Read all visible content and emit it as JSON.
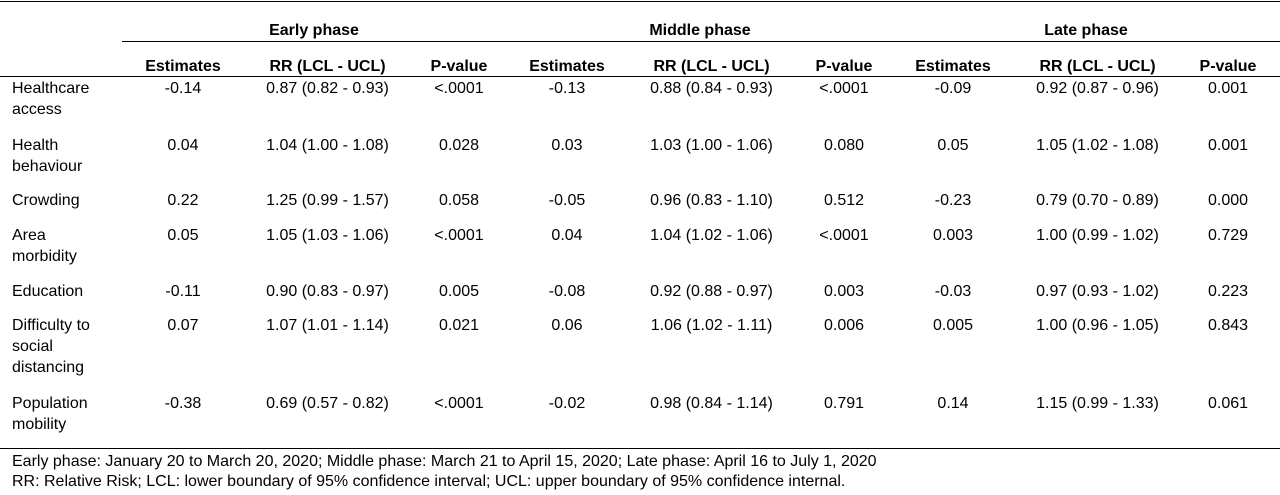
{
  "phases": [
    "Early phase",
    "Middle phase",
    "Late phase"
  ],
  "subheaders": [
    "Estimates",
    "RR (LCL - UCL)",
    "P-value",
    "Estimates",
    "RR (LCL - UCL)",
    "P-value",
    "Estimates",
    "RR (LCL - UCL)",
    "P-value"
  ],
  "rows": [
    {
      "label": [
        "Healthcare",
        "access"
      ],
      "cells": [
        "-0.14",
        "0.87 (0.82 - 0.93)",
        "<.0001",
        "-0.13",
        "0.88 (0.84 - 0.93)",
        "<.0001",
        "-0.09",
        "0.92 (0.87 - 0.96)",
        "0.001"
      ]
    },
    {
      "label": [
        "Health",
        "behaviour"
      ],
      "cells": [
        "0.04",
        "1.04 (1.00 - 1.08)",
        "0.028",
        "0.03",
        "1.03 (1.00 - 1.06)",
        "0.080",
        "0.05",
        "1.05 (1.02 - 1.08)",
        "0.001"
      ]
    },
    {
      "label": [
        "Crowding"
      ],
      "cells": [
        "0.22",
        "1.25 (0.99 - 1.57)",
        "0.058",
        "-0.05",
        "0.96 (0.83 - 1.10)",
        "0.512",
        "-0.23",
        "0.79 (0.70 - 0.89)",
        "0.000"
      ]
    },
    {
      "label": [
        "Area",
        "morbidity"
      ],
      "cells": [
        "0.05",
        "1.05 (1.03 - 1.06)",
        "<.0001",
        "0.04",
        "1.04 (1.02 - 1.06)",
        "<.0001",
        "0.003",
        "1.00 (0.99 - 1.02)",
        "0.729"
      ]
    },
    {
      "label": [
        "Education"
      ],
      "cells": [
        "-0.11",
        "0.90 (0.83 - 0.97)",
        "0.005",
        "-0.08",
        "0.92 (0.88 - 0.97)",
        "0.003",
        "-0.03",
        "0.97 (0.93 - 1.02)",
        "0.223"
      ]
    },
    {
      "label": [
        "Difficulty to",
        "social",
        "distancing"
      ],
      "cells": [
        "0.07",
        "1.07 (1.01 - 1.14)",
        "0.021",
        "0.06",
        "1.06 (1.02 - 1.11)",
        "0.006",
        "0.005",
        "1.00 (0.96 - 1.05)",
        "0.843"
      ]
    },
    {
      "label": [
        "Population",
        "mobility"
      ],
      "cells": [
        "-0.38",
        "0.69 (0.57 - 0.82)",
        "<.0001",
        "-0.02",
        "0.98 (0.84 - 1.14)",
        "0.791",
        "0.14",
        "1.15 (0.99 - 1.33)",
        "0.061"
      ]
    }
  ],
  "footnotes": [
    "Early phase: January 20 to March 20, 2020; Middle phase: March 21 to April 15, 2020; Late phase: April 16 to July 1, 2020",
    "RR: Relative Risk; LCL: lower boundary of 95% confidence interval; UCL: upper boundary of 95% confidence internal."
  ]
}
